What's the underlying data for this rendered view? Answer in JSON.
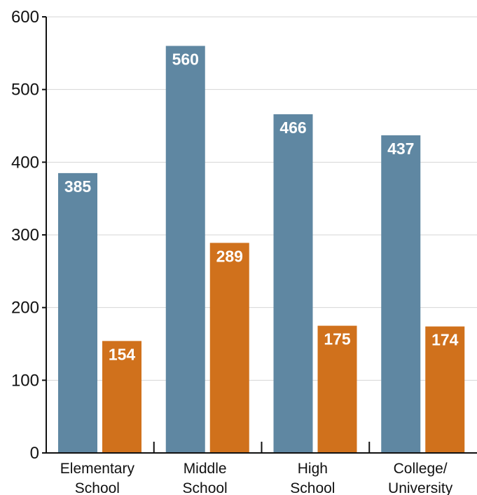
{
  "chart_data": {
    "type": "bar",
    "categories": [
      [
        "Elementary",
        "School"
      ],
      [
        "Middle",
        "School"
      ],
      [
        "High",
        "School"
      ],
      [
        "College/",
        "University"
      ]
    ],
    "series": [
      {
        "values": [
          385,
          560,
          466,
          437
        ],
        "color": "#5f87a2"
      },
      {
        "values": [
          154,
          289,
          175,
          174
        ],
        "color": "#d0711c"
      }
    ],
    "yticks": [
      "0",
      "100",
      "200",
      "300",
      "400",
      "500",
      "600"
    ],
    "ylim": [
      0,
      600
    ],
    "grid": true,
    "legend": "none",
    "title": "",
    "xlabel": "",
    "ylabel": ""
  }
}
